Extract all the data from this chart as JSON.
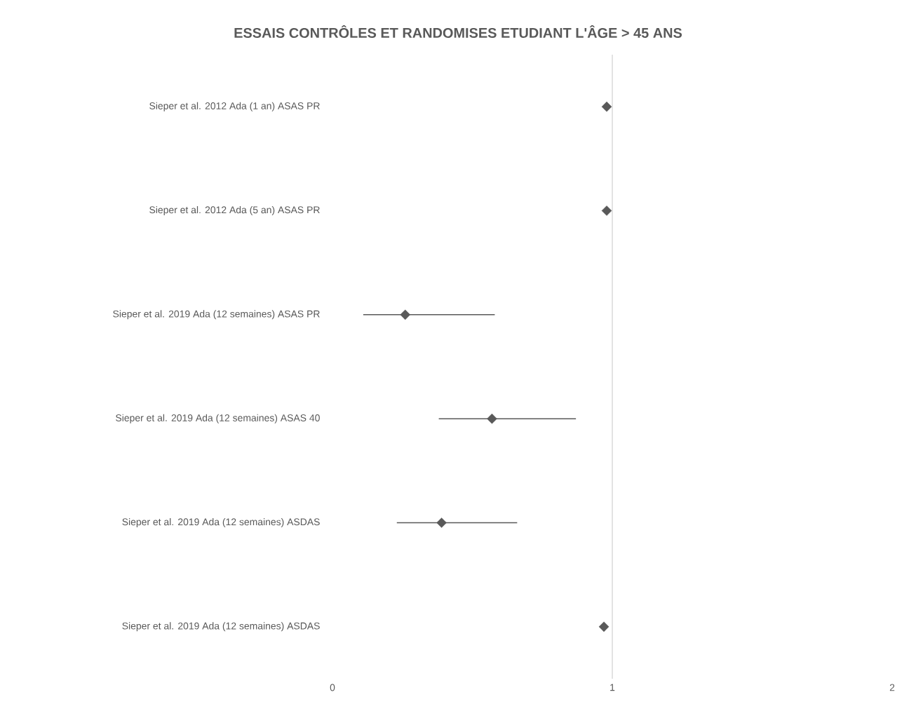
{
  "chart_data": {
    "type": "scatter",
    "title": "ESSAIS CONTRÔLES ET RANDOMISES ETUDIANT L'ÂGE > 45 ANS",
    "orientation": "horizontal",
    "categories": [
      "Sieper et al. 2012 Ada (1 an) ASAS PR",
      "Sieper et al. 2012 Ada (5 an) ASAS PR",
      "Sieper et al. 2019 Ada (12 semaines) ASAS PR",
      "Sieper et al. 2019 Ada (12 semaines) ASAS 40",
      "Sieper et al. 2019 Ada (12 semaines) ASDAS",
      "Sieper et al. 2019 Ada (12 semaines) ASDAS"
    ],
    "values": [
      0.98,
      0.98,
      0.26,
      0.57,
      0.39,
      0.97
    ],
    "errors": [
      null,
      null,
      [
        0.11,
        0.58
      ],
      [
        0.38,
        0.87
      ],
      [
        0.23,
        0.66
      ],
      null
    ],
    "color": "#595959",
    "marker": "diamond",
    "xlim": [
      0,
      2
    ],
    "xticks": [
      0,
      1,
      2
    ],
    "ref_lines": [
      {
        "axis": "x",
        "value": 1,
        "color": "#d9d9d9"
      }
    ],
    "grid": false
  }
}
